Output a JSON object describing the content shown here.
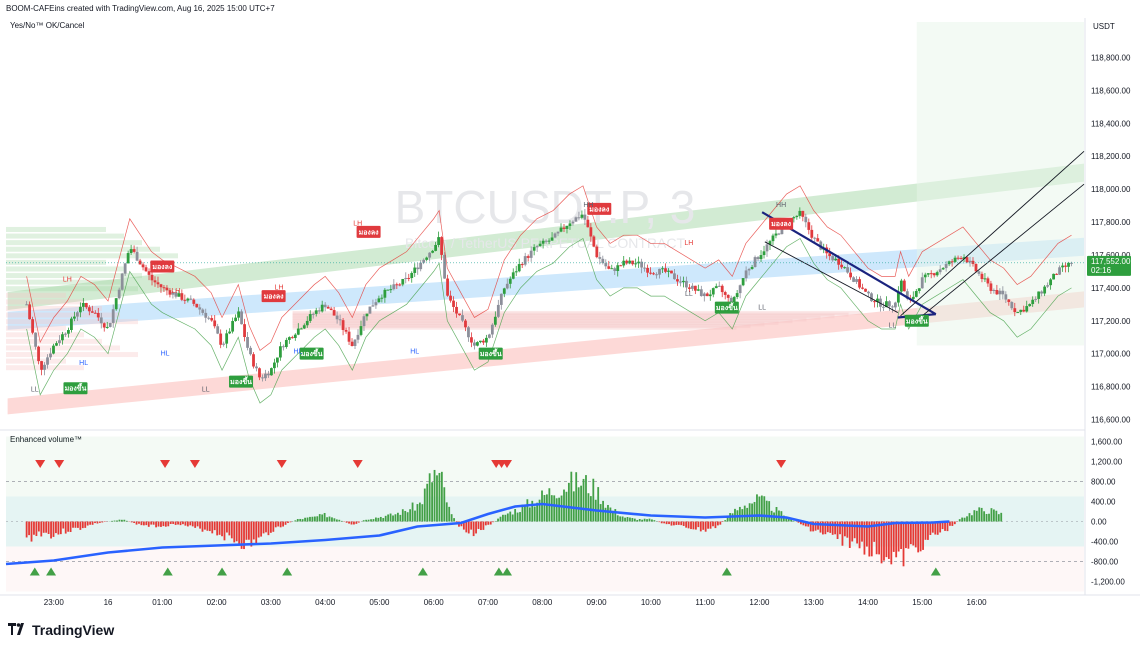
{
  "header": {
    "attribution": "BOOM-CAFEins created with TradingView.com, Aug 16, 2025 15:00 UTC+7"
  },
  "indicator_top": "Yes/No™ OK/Cancel",
  "indicator_bottom": "Enhanced volume™",
  "currency": "USDT",
  "watermark": {
    "symbol": "BTCUSDT.P, 3",
    "subtitle": "Bitcoin / TetherUS PERPETUAL CONTRACT"
  },
  "brand": {
    "name": "TradingView",
    "logo": "tradingview-logo-icon"
  },
  "colors": {
    "up": "#26a69a",
    "candle_up": "#2e9e3e",
    "candle_down": "#e03a3e",
    "neutral": "#8c8f9a",
    "ma": "#2962ff",
    "trend": "#1a237e",
    "buy_tag": "#2e9e3e",
    "sell_tag": "#e03a3e"
  },
  "chart_data": {
    "type": "candlestick",
    "price_axis": {
      "ticks": [
        "118,800.00",
        "118,600.00",
        "118,400.00",
        "118,200.00",
        "118,000.00",
        "117,800.00",
        "117,600.00",
        "117,400.00",
        "117,200.00",
        "117,000.00",
        "116,800.00",
        "116,600.00"
      ],
      "ylim": [
        116550,
        118950
      ]
    },
    "volume_axis": {
      "ticks": [
        "1,600.00",
        "1,200.00",
        "800.00",
        "400.00",
        "0.00",
        "-400.00",
        "-800.00",
        "-1,200.00"
      ],
      "ylim": [
        -1400,
        1700
      ]
    },
    "time_axis": {
      "ticks": [
        "23:00",
        "16",
        "01:00",
        "02:00",
        "03:00",
        "04:00",
        "05:00",
        "06:00",
        "07:00",
        "08:00",
        "09:00",
        "10:00",
        "11:00",
        "12:00",
        "13:00",
        "14:00",
        "15:00",
        "16:00"
      ]
    },
    "last_price": {
      "value": "117,552.00",
      "countdown": "02:16"
    },
    "price_path": [
      [
        22.5,
        117300
      ],
      [
        22.75,
        116900
      ],
      [
        23,
        117050
      ],
      [
        23.25,
        117150
      ],
      [
        23.5,
        117300
      ],
      [
        23.75,
        117250
      ],
      [
        24,
        117150
      ],
      [
        24.2,
        117400
      ],
      [
        24.4,
        117650
      ],
      [
        24.6,
        117550
      ],
      [
        24.8,
        117450
      ],
      [
        25,
        117400
      ],
      [
        25.3,
        117350
      ],
      [
        25.6,
        117300
      ],
      [
        25.9,
        117200
      ],
      [
        26.1,
        117050
      ],
      [
        26.4,
        117250
      ],
      [
        26.6,
        117000
      ],
      [
        26.8,
        116850
      ],
      [
        27,
        116900
      ],
      [
        27.2,
        117050
      ],
      [
        27.5,
        117150
      ],
      [
        27.8,
        117250
      ],
      [
        28,
        117300
      ],
      [
        28.25,
        117200
      ],
      [
        28.5,
        117050
      ],
      [
        28.75,
        117250
      ],
      [
        29,
        117350
      ],
      [
        29.25,
        117400
      ],
      [
        29.5,
        117450
      ],
      [
        29.75,
        117550
      ],
      [
        30,
        117650
      ],
      [
        30.1,
        117700
      ],
      [
        30.25,
        117350
      ],
      [
        30.5,
        117200
      ],
      [
        30.75,
        117050
      ],
      [
        31,
        117100
      ],
      [
        31.3,
        117400
      ],
      [
        31.6,
        117550
      ],
      [
        31.9,
        117650
      ],
      [
        32.2,
        117700
      ],
      [
        32.5,
        117800
      ],
      [
        32.75,
        117850
      ],
      [
        33,
        117600
      ],
      [
        33.25,
        117500
      ],
      [
        33.5,
        117550
      ],
      [
        33.75,
        117550
      ],
      [
        34,
        117500
      ],
      [
        34.25,
        117500
      ],
      [
        34.5,
        117450
      ],
      [
        34.75,
        117400
      ],
      [
        35,
        117350
      ],
      [
        35.25,
        117400
      ],
      [
        35.5,
        117300
      ],
      [
        35.75,
        117500
      ],
      [
        36,
        117600
      ],
      [
        36.25,
        117700
      ],
      [
        36.5,
        117800
      ],
      [
        36.75,
        117850
      ],
      [
        37,
        117700
      ],
      [
        37.25,
        117600
      ],
      [
        37.5,
        117550
      ],
      [
        37.75,
        117450
      ],
      [
        38,
        117350
      ],
      [
        38.25,
        117300
      ],
      [
        38.5,
        117300
      ],
      [
        38.6,
        117450
      ],
      [
        38.75,
        117300
      ],
      [
        39,
        117450
      ],
      [
        39.25,
        117500
      ],
      [
        39.5,
        117550
      ],
      [
        39.75,
        117600
      ],
      [
        40,
        117500
      ],
      [
        40.25,
        117400
      ],
      [
        40.5,
        117350
      ],
      [
        40.75,
        117250
      ],
      [
        41,
        117300
      ],
      [
        41.25,
        117400
      ],
      [
        41.5,
        117500
      ],
      [
        41.75,
        117550
      ]
    ],
    "volume_bars_note": "Net volume histogram, green above 0 / red below 0, with a blue moving average",
    "volume_path": [
      [
        22.5,
        -400
      ],
      [
        22.75,
        -250
      ],
      [
        23,
        -300
      ],
      [
        23.25,
        -200
      ],
      [
        23.5,
        -150
      ],
      [
        23.75,
        -50
      ],
      [
        24,
        0
      ],
      [
        24.25,
        50
      ],
      [
        24.5,
        -50
      ],
      [
        24.75,
        -100
      ],
      [
        25,
        -100
      ],
      [
        25.3,
        -50
      ],
      [
        25.6,
        -150
      ],
      [
        25.9,
        -200
      ],
      [
        26.1,
        -300
      ],
      [
        26.4,
        -450
      ],
      [
        26.6,
        -550
      ],
      [
        26.8,
        -400
      ],
      [
        27,
        -200
      ],
      [
        27.2,
        -100
      ],
      [
        27.5,
        50
      ],
      [
        27.8,
        100
      ],
      [
        28,
        150
      ],
      [
        28.25,
        50
      ],
      [
        28.5,
        -100
      ],
      [
        28.75,
        50
      ],
      [
        29,
        100
      ],
      [
        29.25,
        150
      ],
      [
        29.5,
        250
      ],
      [
        29.75,
        400
      ],
      [
        30,
        1100
      ],
      [
        30.15,
        900
      ],
      [
        30.3,
        200
      ],
      [
        30.5,
        -150
      ],
      [
        30.75,
        -250
      ],
      [
        31,
        -100
      ],
      [
        31.3,
        150
      ],
      [
        31.6,
        300
      ],
      [
        31.9,
        500
      ],
      [
        32.2,
        700
      ],
      [
        32.5,
        850
      ],
      [
        32.75,
        900
      ],
      [
        33,
        700
      ],
      [
        33.25,
        300
      ],
      [
        33.5,
        100
      ],
      [
        33.75,
        50
      ],
      [
        34,
        50
      ],
      [
        34.25,
        -50
      ],
      [
        34.5,
        -100
      ],
      [
        34.75,
        -150
      ],
      [
        35,
        -200
      ],
      [
        35.25,
        -100
      ],
      [
        35.5,
        200
      ],
      [
        35.75,
        400
      ],
      [
        36,
        500
      ],
      [
        36.25,
        300
      ],
      [
        36.5,
        100
      ],
      [
        36.75,
        -50
      ],
      [
        37,
        -200
      ],
      [
        37.25,
        -300
      ],
      [
        37.5,
        -400
      ],
      [
        37.75,
        -500
      ],
      [
        38,
        -600
      ],
      [
        38.25,
        -700
      ],
      [
        38.5,
        -800
      ],
      [
        38.6,
        -900
      ],
      [
        38.75,
        -700
      ],
      [
        39,
        -500
      ],
      [
        39.25,
        -300
      ],
      [
        39.5,
        -150
      ],
      [
        39.75,
        100
      ],
      [
        40,
        250
      ],
      [
        40.25,
        250
      ],
      [
        40.5,
        150
      ]
    ],
    "signals": [
      {
        "type": "sell",
        "label": "มองลง",
        "t": 25.0,
        "price": 117530
      },
      {
        "type": "sell",
        "label": "มองลง",
        "t": 27.05,
        "price": 117350
      },
      {
        "type": "sell",
        "label": "มองลง",
        "t": 28.8,
        "price": 117740
      },
      {
        "type": "sell",
        "label": "มองลง",
        "t": 33.05,
        "price": 117880
      },
      {
        "type": "sell",
        "label": "มองลง",
        "t": 36.4,
        "price": 117790
      },
      {
        "type": "buy",
        "label": "มองขึ้น",
        "t": 23.4,
        "price": 116790
      },
      {
        "type": "buy",
        "label": "มองขึ้น",
        "t": 26.45,
        "price": 116830
      },
      {
        "type": "buy",
        "label": "มองขึ้น",
        "t": 27.75,
        "price": 117000
      },
      {
        "type": "buy",
        "label": "มองขึ้น",
        "t": 31.05,
        "price": 117000
      },
      {
        "type": "buy",
        "label": "มองขึ้น",
        "t": 35.4,
        "price": 117280
      },
      {
        "type": "buy",
        "label": "มองขึ้น",
        "t": 38.9,
        "price": 117200
      }
    ],
    "swing_labels": [
      {
        "text": "LL",
        "t": 22.65,
        "price": 116770
      },
      {
        "text": "HL",
        "t": 23.55,
        "price": 116930
      },
      {
        "text": "LH",
        "t": 23.25,
        "price": 117440
      },
      {
        "text": "HL",
        "t": 25.05,
        "price": 116990
      },
      {
        "text": "LH",
        "t": 25.25,
        "price": 117370
      },
      {
        "text": "LL",
        "t": 25.8,
        "price": 116770
      },
      {
        "text": "LH",
        "t": 27.15,
        "price": 117390
      },
      {
        "text": "HL",
        "t": 27.5,
        "price": 117000
      },
      {
        "text": "LH",
        "t": 28.6,
        "price": 117780
      },
      {
        "text": "HL",
        "t": 29.65,
        "price": 117000
      },
      {
        "text": "HH",
        "t": 32.85,
        "price": 117890
      },
      {
        "text": "LH",
        "t": 34.7,
        "price": 117660
      },
      {
        "text": "LL",
        "t": 34.7,
        "price": 117350
      },
      {
        "text": "LL",
        "t": 36.05,
        "price": 117270
      },
      {
        "text": "HH",
        "t": 36.4,
        "price": 117890
      },
      {
        "text": "LL",
        "t": 38.45,
        "price": 117160
      }
    ],
    "volume_markers": [
      {
        "dir": "down",
        "t": 22.75
      },
      {
        "dir": "down",
        "t": 23.1
      },
      {
        "dir": "down",
        "t": 25.05
      },
      {
        "dir": "down",
        "t": 25.6
      },
      {
        "dir": "down",
        "t": 27.2
      },
      {
        "dir": "down",
        "t": 28.6
      },
      {
        "dir": "down",
        "t": 31.15
      },
      {
        "dir": "down",
        "t": 31.25
      },
      {
        "dir": "down",
        "t": 31.35
      },
      {
        "dir": "down",
        "t": 36.4
      },
      {
        "dir": "up",
        "t": 22.65
      },
      {
        "dir": "up",
        "t": 22.95
      },
      {
        "dir": "up",
        "t": 25.1
      },
      {
        "dir": "up",
        "t": 26.1
      },
      {
        "dir": "up",
        "t": 27.3
      },
      {
        "dir": "up",
        "t": 29.8
      },
      {
        "dir": "up",
        "t": 31.2
      },
      {
        "dir": "up",
        "t": 31.35
      },
      {
        "dir": "up",
        "t": 35.4
      },
      {
        "dir": "up",
        "t": 39.25
      }
    ]
  }
}
